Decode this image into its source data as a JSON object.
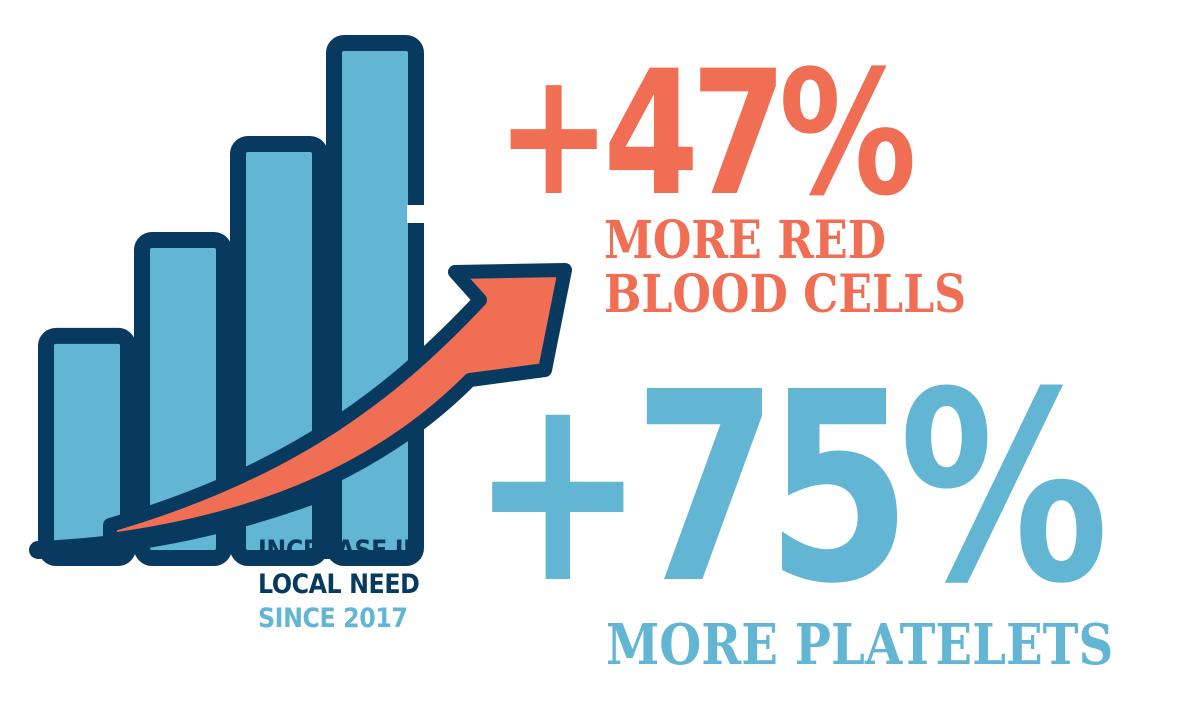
{
  "colors": {
    "orange": "#f06e53",
    "blue": "#62b6d3",
    "navy": "#083a60"
  },
  "icon": {
    "name": "rising-bar-chart-with-arrow-icon",
    "bar_levels": [
      0.42,
      0.61,
      0.8,
      1.0
    ]
  },
  "caption": {
    "line1": "INCREASE IN",
    "line2": "LOCAL NEED",
    "line3": "SINCE 2017"
  },
  "stats": [
    {
      "value": "+47%",
      "label_line1": "MORE RED",
      "label_line2": "BLOOD CELLS"
    },
    {
      "value": "+75%",
      "label": "MORE PLATELETS"
    }
  ]
}
